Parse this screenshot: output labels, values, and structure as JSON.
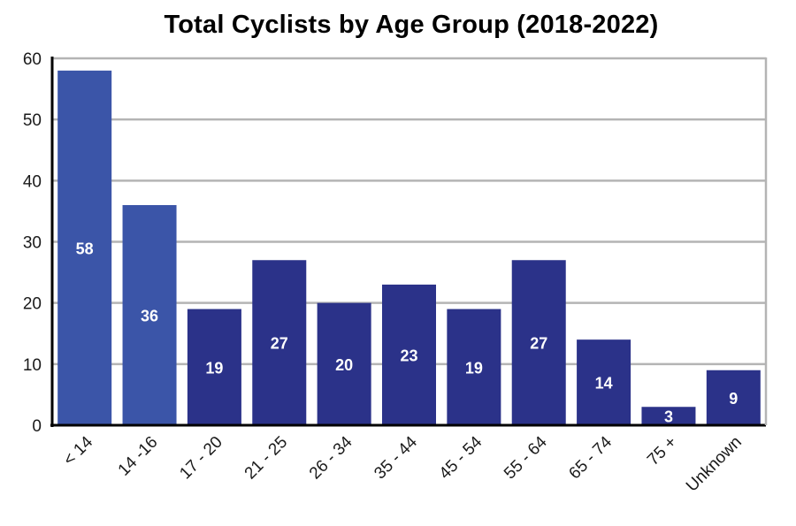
{
  "chart_data": {
    "type": "bar",
    "title": "Total Cyclists by Age Group (2018-2022)",
    "xlabel": "",
    "ylabel": "",
    "ylim": [
      0,
      60
    ],
    "yticks": [
      0,
      10,
      20,
      30,
      40,
      50,
      60
    ],
    "grid": true,
    "categories": [
      "< 14",
      "14 -16",
      "17 - 20",
      "21 - 25",
      "26 - 34",
      "35 - 44",
      "45 - 54",
      "55 - 64",
      "65 - 74",
      "75 +",
      "Unknown"
    ],
    "values": [
      58,
      36,
      19,
      27,
      20,
      23,
      19,
      27,
      14,
      3,
      9
    ],
    "bar_colors": [
      "#3b55a8",
      "#3b55a8",
      "#2b3289",
      "#2b3289",
      "#2b3289",
      "#2b3289",
      "#2b3289",
      "#2b3289",
      "#2b3289",
      "#2b3289",
      "#2b3289"
    ],
    "gridline_color": "#b4b4b4"
  }
}
